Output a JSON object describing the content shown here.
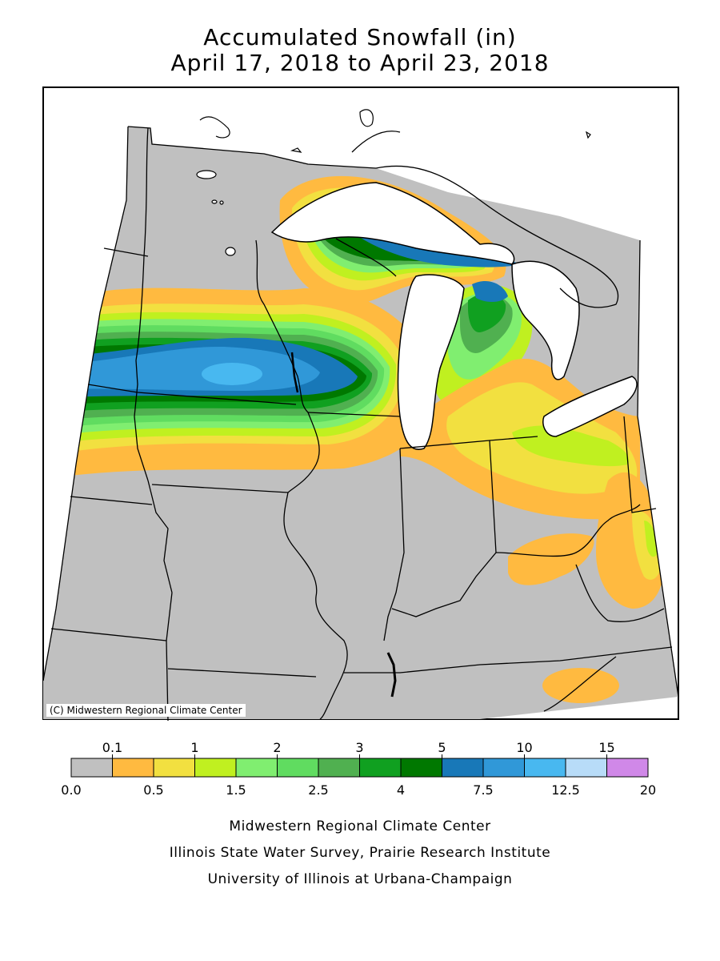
{
  "title": {
    "line1": "Accumulated Snowfall (in)",
    "line2": "April 17, 2018 to April 23, 2018"
  },
  "copyright": "(C) Midwestern Regional Climate Center",
  "legend": {
    "top_labels": [
      "0.1",
      "1",
      "2",
      "3",
      "5",
      "10",
      "15"
    ],
    "bottom_labels": [
      "0.0",
      "0.5",
      "1.5",
      "2.5",
      "4",
      "7.5",
      "12.5",
      "20"
    ],
    "colors": [
      "#c0c0c0",
      "#ffba40",
      "#f2e040",
      "#c0f020",
      "#80ee70",
      "#60dc60",
      "#50b050",
      "#10a020",
      "#007800",
      "#1878b8",
      "#3098d8",
      "#48b8f0",
      "#b8dcf8",
      "#d088e8"
    ]
  },
  "map": {
    "background_color": "#c0c0c0",
    "water_color": "#ffffff",
    "border_color": "#000000"
  },
  "credits": {
    "line1": "Midwestern Regional Climate Center",
    "line2": "Illinois State Water Survey, Prairie Research Institute",
    "line3": "University of Illinois at Urbana-Champaign"
  }
}
